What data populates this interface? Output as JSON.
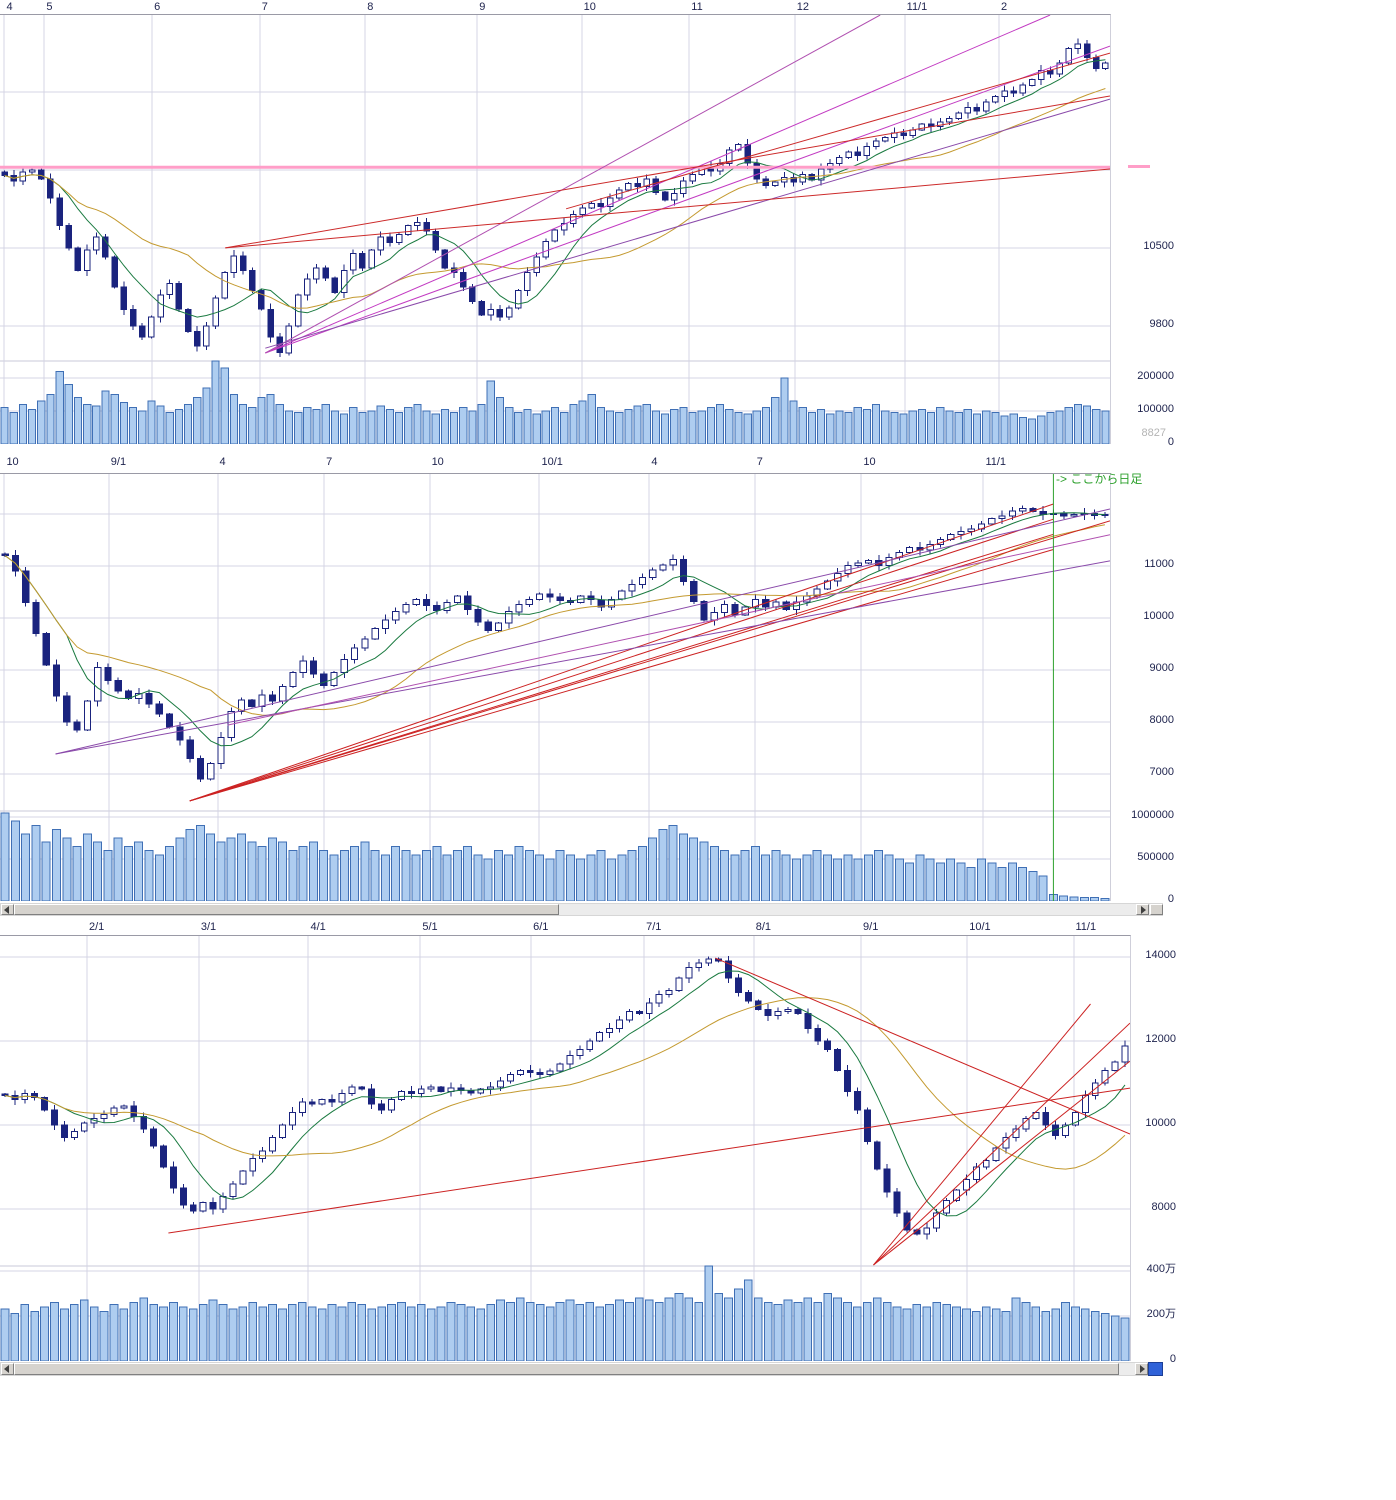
{
  "page": {
    "background": "#ffffff"
  },
  "colors": {
    "candle": "#1a237e",
    "candle_up_fill": "#ffffff",
    "volume_fill": "#aecdf0",
    "volume_border": "#3f6fb5",
    "grid": "#d4d4e4",
    "ma_short": "#1a7a40",
    "ma_long": "#c49a30",
    "trend_red": "#cc2222",
    "trend_magenta": "#c23ac2",
    "trend_purple": "#8a4aaa",
    "drawn_pink": "#ff9ec8",
    "marker_green": "#2ca02c",
    "label_text": "#20254f",
    "muted_label": "#b4b4b4"
  },
  "chart_data": [
    {
      "type": "candlestick",
      "position": "top",
      "x_axis": {
        "labels": [
          {
            "text": "4",
            "pos": 0.004
          },
          {
            "text": "5",
            "pos": 0.04
          },
          {
            "text": "6",
            "pos": 0.137
          },
          {
            "text": "7",
            "pos": 0.234
          },
          {
            "text": "8",
            "pos": 0.329
          },
          {
            "text": "9",
            "pos": 0.43
          },
          {
            "text": "10",
            "pos": 0.524
          },
          {
            "text": "11",
            "pos": 0.621
          },
          {
            "text": "12",
            "pos": 0.716
          },
          {
            "text": "11/1",
            "pos": 0.815
          },
          {
            "text": "2",
            "pos": 0.9
          }
        ]
      },
      "y_axis": {
        "range": [
          9486,
          12590
        ],
        "ticks": [
          {
            "value": 10500,
            "label": "10500"
          },
          {
            "value": 9800,
            "label": "9800"
          }
        ],
        "unlabeled_gridlines": [
          11200,
          11900
        ]
      },
      "volume_axis": {
        "max": 251000,
        "unit": 1000,
        "ticks": [
          {
            "value": 200000,
            "label": "200000"
          },
          {
            "value": 100000,
            "label": "100000"
          },
          {
            "value": 0,
            "label": "0"
          }
        ],
        "current_value_label": "8827"
      },
      "closes": [
        11150,
        11100,
        11180,
        11200,
        11120,
        10950,
        10700,
        10500,
        10300,
        10480,
        10600,
        10420,
        10150,
        9950,
        9800,
        9700,
        9880,
        10080,
        10180,
        9950,
        9750,
        9620,
        9800,
        10050,
        10280,
        10430,
        10300,
        10120,
        9950,
        9700,
        9560,
        9800,
        10080,
        10220,
        10320,
        10230,
        10100,
        10300,
        10450,
        10320,
        10480,
        10600,
        10550,
        10620,
        10700,
        10730,
        10650,
        10480,
        10320,
        10280,
        10150,
        10020,
        9900,
        9950,
        9880,
        9960,
        10120,
        10280,
        10420,
        10560,
        10660,
        10720,
        10800,
        10860,
        10900,
        10870,
        10950,
        11020,
        11080,
        11050,
        11120,
        11000,
        10930,
        10990,
        11100,
        11160,
        11230,
        11190,
        11260,
        11380,
        11430,
        11260,
        11120,
        11060,
        11090,
        11130,
        11090,
        11160,
        11110,
        11210,
        11260,
        11310,
        11360,
        11330,
        11410,
        11460,
        11490,
        11530,
        11510,
        11560,
        11610,
        11590,
        11630,
        11660,
        11710,
        11760,
        11730,
        11810,
        11860,
        11910,
        11890,
        11960,
        12010,
        12090,
        12060,
        12160,
        12290,
        12330,
        12210,
        12110,
        12160
      ],
      "volumes": [
        110,
        95,
        120,
        105,
        130,
        150,
        220,
        180,
        140,
        120,
        115,
        160,
        150,
        125,
        110,
        100,
        130,
        115,
        95,
        105,
        120,
        140,
        170,
        260,
        230,
        150,
        120,
        110,
        140,
        150,
        120,
        100,
        95,
        110,
        105,
        120,
        100,
        90,
        110,
        95,
        100,
        115,
        105,
        95,
        110,
        120,
        100,
        90,
        105,
        95,
        110,
        100,
        120,
        190,
        140,
        110,
        95,
        105,
        90,
        100,
        110,
        95,
        120,
        130,
        150,
        110,
        100,
        95,
        105,
        115,
        120,
        100,
        90,
        105,
        110,
        95,
        100,
        110,
        120,
        105,
        95,
        90,
        100,
        110,
        140,
        200,
        130,
        110,
        95,
        105,
        90,
        100,
        95,
        110,
        105,
        120,
        100,
        95,
        90,
        100,
        105,
        95,
        110,
        100,
        95,
        105,
        90,
        100,
        95,
        85,
        90,
        80,
        75,
        85,
        95,
        100,
        110,
        120,
        115,
        105,
        100
      ],
      "moving_averages": [
        {
          "window": 7,
          "color": "#1a7a40"
        },
        {
          "window": 21,
          "color": "#c49a30"
        }
      ],
      "hlines": [
        {
          "price": 11225,
          "color": "#ff9ec8",
          "width": 3,
          "right_tag": true
        }
      ],
      "trend_lines": [
        {
          "x1": 0.239,
          "y1": 0.977,
          "x2": 0.946,
          "y2": 0.0,
          "color": "#c23ac2"
        },
        {
          "x1": 0.239,
          "y1": 0.977,
          "x2": 1.0,
          "y2": 0.09,
          "color": "#c23ac2"
        },
        {
          "x1": 0.239,
          "y1": 0.977,
          "x2": 0.793,
          "y2": 0.0,
          "color": "#b050b0"
        },
        {
          "x1": 0.239,
          "y1": 0.963,
          "x2": 1.0,
          "y2": 0.243,
          "color": "#8a4aaa"
        },
        {
          "x1": 0.203,
          "y1": 0.673,
          "x2": 1.0,
          "y2": 0.445,
          "color": "#cc2a2a"
        },
        {
          "x1": 0.203,
          "y1": 0.673,
          "x2": 1.0,
          "y2": 0.234,
          "color": "#cc2a2a"
        },
        {
          "x1": 0.51,
          "y1": 0.56,
          "x2": 1.0,
          "y2": 0.11,
          "color": "#cc2a2a"
        }
      ],
      "vlines": [],
      "annotations": []
    },
    {
      "type": "candlestick",
      "position": "middle",
      "x_axis": {
        "labels": [
          {
            "text": "10",
            "pos": 0.004
          },
          {
            "text": "9/1",
            "pos": 0.098
          },
          {
            "text": "4",
            "pos": 0.196
          },
          {
            "text": "7",
            "pos": 0.292
          },
          {
            "text": "10",
            "pos": 0.387
          },
          {
            "text": "10/1",
            "pos": 0.486
          },
          {
            "text": "4",
            "pos": 0.585
          },
          {
            "text": "7",
            "pos": 0.68
          },
          {
            "text": "10",
            "pos": 0.776
          },
          {
            "text": "11/1",
            "pos": 0.886
          }
        ]
      },
      "y_axis": {
        "range": [
          6288,
          12769
        ],
        "ticks": [
          {
            "value": 11000,
            "label": "11000"
          },
          {
            "value": 10000,
            "label": "10000"
          },
          {
            "value": 9000,
            "label": "9000"
          },
          {
            "value": 8000,
            "label": "8000"
          },
          {
            "value": 7000,
            "label": "7000"
          }
        ],
        "unlabeled_gridlines": [
          12000
        ]
      },
      "volume_axis": {
        "max": 1071000,
        "unit": 10000,
        "ticks": [
          {
            "value": 1000000,
            "label": "1000000"
          },
          {
            "value": 500000,
            "label": "500000"
          },
          {
            "value": 0,
            "label": "0"
          }
        ]
      },
      "closes": [
        11200,
        10900,
        10300,
        9700,
        9100,
        8500,
        8000,
        7850,
        8400,
        9050,
        8800,
        8600,
        8450,
        8550,
        8350,
        8150,
        7900,
        7650,
        7300,
        6900,
        7200,
        7700,
        8200,
        8420,
        8300,
        8520,
        8400,
        8680,
        8950,
        9170,
        8920,
        8700,
        8950,
        9200,
        9420,
        9600,
        9800,
        9960,
        10120,
        10260,
        10360,
        10240,
        10140,
        10300,
        10420,
        10160,
        9920,
        9760,
        9900,
        10120,
        10260,
        10360,
        10460,
        10400,
        10340,
        10300,
        10420,
        10350,
        10210,
        10360,
        10520,
        10640,
        10780,
        10920,
        11020,
        11120,
        10700,
        10320,
        9960,
        10110,
        10260,
        10060,
        10210,
        10360,
        10210,
        10310,
        10160,
        10310,
        10420,
        10560,
        10710,
        10860,
        11010,
        11060,
        11110,
        11010,
        11160,
        11260,
        11360,
        11310,
        11410,
        11510,
        11610,
        11660,
        11710,
        11810,
        11910,
        11960,
        12060,
        12110,
        12050,
        11990,
        12010,
        11960,
        11990,
        12010,
        11970,
        11990
      ],
      "volumes": [
        105,
        95,
        80,
        90,
        70,
        85,
        75,
        65,
        80,
        70,
        60,
        75,
        65,
        70,
        60,
        55,
        65,
        75,
        85,
        90,
        80,
        70,
        75,
        80,
        70,
        65,
        75,
        70,
        60,
        65,
        70,
        60,
        55,
        60,
        65,
        70,
        60,
        55,
        65,
        60,
        55,
        60,
        65,
        55,
        60,
        65,
        55,
        50,
        60,
        55,
        65,
        60,
        55,
        50,
        60,
        55,
        50,
        55,
        60,
        50,
        55,
        60,
        65,
        75,
        85,
        90,
        80,
        75,
        70,
        65,
        60,
        55,
        60,
        65,
        55,
        60,
        55,
        50,
        55,
        60,
        55,
        50,
        55,
        50,
        55,
        60,
        55,
        50,
        45,
        55,
        50,
        45,
        50,
        45,
        40,
        50,
        45,
        40,
        45,
        40,
        35,
        30,
        8,
        6,
        5,
        4,
        4,
        3
      ],
      "moving_averages": [
        {
          "window": 7,
          "color": "#1a7a40"
        },
        {
          "window": 21,
          "color": "#c49a30"
        }
      ],
      "hlines": [],
      "trend_lines": [
        {
          "x1": 0.171,
          "y1": 0.97,
          "x2": 0.949,
          "y2": 0.089,
          "color": "#cc2222"
        },
        {
          "x1": 0.171,
          "y1": 0.97,
          "x2": 0.949,
          "y2": 0.134,
          "color": "#cc2222"
        },
        {
          "x1": 0.171,
          "y1": 0.97,
          "x2": 0.949,
          "y2": 0.179,
          "color": "#cc2222"
        },
        {
          "x1": 0.171,
          "y1": 0.97,
          "x2": 0.949,
          "y2": 0.224,
          "color": "#cc2222"
        },
        {
          "x1": 0.171,
          "y1": 0.97,
          "x2": 1.0,
          "y2": 0.139,
          "color": "#cc2222"
        },
        {
          "x1": 0.05,
          "y1": 0.831,
          "x2": 1.0,
          "y2": 0.104,
          "color": "#8a4aaa"
        },
        {
          "x1": 0.05,
          "y1": 0.831,
          "x2": 1.0,
          "y2": 0.258,
          "color": "#8a4aaa"
        },
        {
          "x1": 0.205,
          "y1": 0.745,
          "x2": 1.0,
          "y2": 0.18,
          "color": "#b050b0"
        }
      ],
      "vlines": [
        {
          "pos": 0.949,
          "color": "#2ca02c"
        }
      ],
      "annotations": [
        {
          "text": "-> ここから日足",
          "pos": 0.952,
          "color": "#2ca02c"
        }
      ]
    },
    {
      "type": "candlestick",
      "position": "bottom",
      "x_axis": {
        "labels": [
          {
            "text": "2/1",
            "pos": 0.077
          },
          {
            "text": "3/1",
            "pos": 0.176
          },
          {
            "text": "4/1",
            "pos": 0.273
          },
          {
            "text": "5/1",
            "pos": 0.372
          },
          {
            "text": "6/1",
            "pos": 0.47
          },
          {
            "text": "7/1",
            "pos": 0.57
          },
          {
            "text": "8/1",
            "pos": 0.667
          },
          {
            "text": "9/1",
            "pos": 0.762
          },
          {
            "text": "10/1",
            "pos": 0.856
          },
          {
            "text": "11/1",
            "pos": 0.95
          }
        ]
      },
      "y_axis": {
        "range": [
          6643,
          14497
        ],
        "ticks": [
          {
            "value": 14000,
            "label": "14000"
          },
          {
            "value": 12000,
            "label": "12000"
          },
          {
            "value": 10000,
            "label": "10000"
          },
          {
            "value": 8000,
            "label": "8000"
          }
        ],
        "unlabeled_gridlines": []
      },
      "volume_axis": {
        "max": 4220000,
        "unit": 10000,
        "ticks": [
          {
            "value": 4000000,
            "label": "400万"
          },
          {
            "value": 2000000,
            "label": "200万"
          },
          {
            "value": 0,
            "label": "0"
          }
        ]
      },
      "closes": [
        10700,
        10600,
        10750,
        10650,
        10350,
        10000,
        9700,
        9850,
        10050,
        10150,
        10250,
        10400,
        10450,
        10200,
        9900,
        9500,
        9000,
        8500,
        8100,
        7950,
        8150,
        8000,
        8300,
        8600,
        8900,
        9200,
        9380,
        9700,
        10000,
        10300,
        10550,
        10500,
        10600,
        10550,
        10750,
        10900,
        10850,
        10500,
        10350,
        10600,
        10800,
        10750,
        10850,
        10900,
        10800,
        10880,
        10820,
        10760,
        10850,
        10900,
        11050,
        11200,
        11300,
        11250,
        11200,
        11280,
        11450,
        11650,
        11800,
        12000,
        12200,
        12300,
        12500,
        12700,
        12650,
        12900,
        13100,
        13200,
        13500,
        13750,
        13850,
        13950,
        13900,
        13500,
        13150,
        12950,
        12750,
        12600,
        12700,
        12750,
        12650,
        12300,
        12000,
        11800,
        11300,
        10800,
        10350,
        9600,
        8950,
        8400,
        7900,
        7500,
        7400,
        7550,
        7900,
        8200,
        8450,
        8700,
        9000,
        9150,
        9450,
        9700,
        9900,
        10150,
        10300,
        10000,
        9750,
        10000,
        10300,
        10700,
        11000,
        11300,
        11500,
        11880
      ],
      "volumes": [
        230,
        210,
        250,
        220,
        240,
        260,
        230,
        250,
        270,
        240,
        220,
        250,
        230,
        260,
        280,
        250,
        240,
        260,
        240,
        230,
        250,
        270,
        250,
        230,
        240,
        260,
        240,
        250,
        230,
        250,
        260,
        240,
        230,
        250,
        240,
        260,
        250,
        230,
        240,
        250,
        260,
        240,
        250,
        230,
        240,
        260,
        250,
        240,
        230,
        250,
        270,
        260,
        280,
        260,
        250,
        240,
        260,
        270,
        250,
        260,
        240,
        250,
        270,
        260,
        280,
        270,
        260,
        280,
        300,
        280,
        260,
        440,
        300,
        280,
        320,
        360,
        280,
        260,
        250,
        270,
        260,
        280,
        260,
        300,
        280,
        260,
        240,
        260,
        280,
        260,
        240,
        230,
        250,
        240,
        260,
        250,
        240,
        230,
        220,
        240,
        230,
        220,
        280,
        260,
        240,
        220,
        230,
        260,
        240,
        230,
        220,
        210,
        200,
        190
      ],
      "moving_averages": [
        {
          "window": 7,
          "color": "#1a7a40"
        },
        {
          "window": 21,
          "color": "#c49a30"
        }
      ],
      "hlines": [],
      "trend_lines": [
        {
          "x1": 0.633,
          "y1": 0.067,
          "x2": 1.0,
          "y2": 0.6,
          "color": "#cc2222"
        },
        {
          "x1": 0.149,
          "y1": 0.9,
          "x2": 1.0,
          "y2": 0.461,
          "color": "#cc2222"
        },
        {
          "x1": 0.773,
          "y1": 0.997,
          "x2": 0.965,
          "y2": 0.206,
          "color": "#cc2222"
        },
        {
          "x1": 0.773,
          "y1": 0.997,
          "x2": 1.0,
          "y2": 0.264,
          "color": "#cc2222"
        },
        {
          "x1": 0.773,
          "y1": 0.997,
          "x2": 1.0,
          "y2": 0.379,
          "color": "#cc2222"
        }
      ],
      "vlines": [],
      "annotations": []
    }
  ]
}
